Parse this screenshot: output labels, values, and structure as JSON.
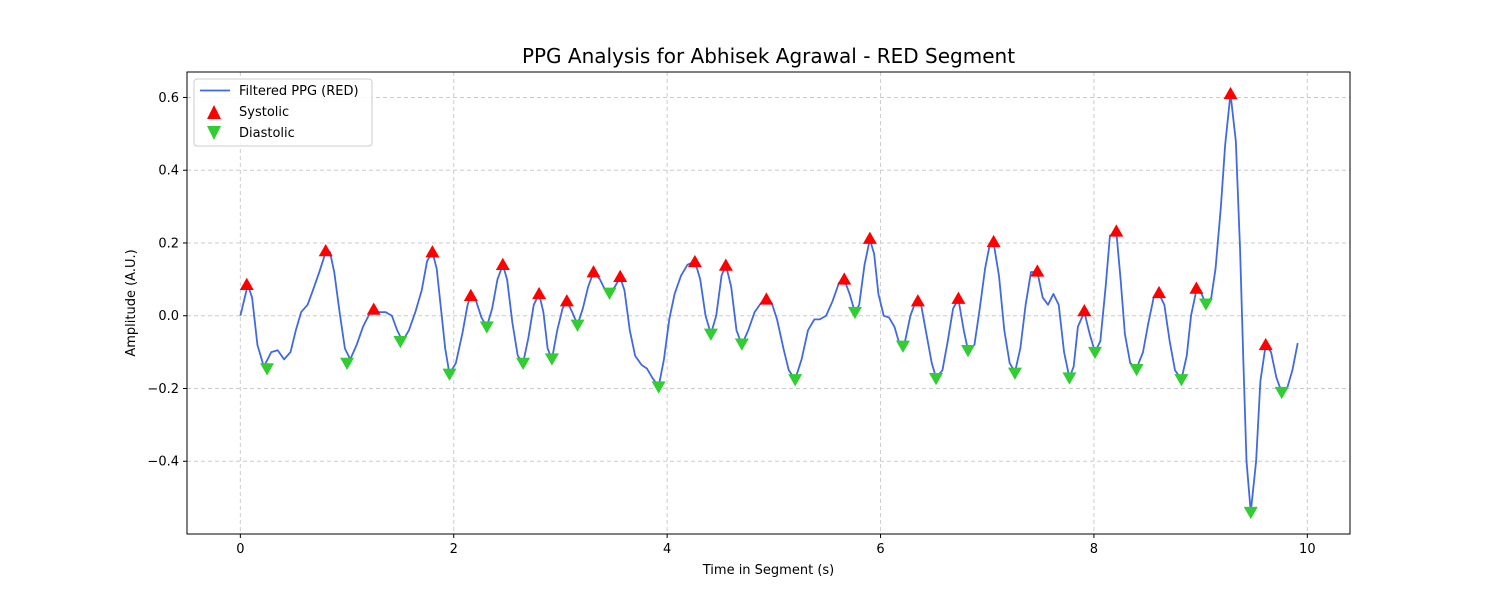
{
  "chart_data": {
    "type": "line",
    "title": "PPG Analysis for Abhisek Agrawal - RED Segment",
    "xlabel": "Time in Segment (s)",
    "ylabel": "Amplitude (A.U.)",
    "xlim": [
      -0.5,
      10.4
    ],
    "ylim": [
      -0.6,
      0.67
    ],
    "xticks": [
      0,
      2,
      4,
      6,
      8,
      10
    ],
    "yticks": [
      -0.4,
      -0.2,
      0.0,
      0.2,
      0.4,
      0.6
    ],
    "xtick_labels": [
      "0",
      "2",
      "4",
      "6",
      "8",
      "10"
    ],
    "ytick_labels": [
      "−0.4",
      "−0.2",
      "0.0",
      "0.2",
      "0.4",
      "0.6"
    ],
    "grid": true,
    "legend_position": "top-left",
    "colors": {
      "line": "#4169e1",
      "systolic": "#ff0000",
      "diastolic": "#32cd32"
    },
    "series": [
      {
        "name": "Filtered PPG (RED)",
        "kind": "line",
        "points": [
          [
            0.0,
            0.0
          ],
          [
            0.07,
            0.085
          ],
          [
            0.11,
            0.05
          ],
          [
            0.16,
            -0.08
          ],
          [
            0.22,
            -0.14
          ],
          [
            0.29,
            -0.1
          ],
          [
            0.35,
            -0.095
          ],
          [
            0.41,
            -0.12
          ],
          [
            0.47,
            -0.1
          ],
          [
            0.52,
            -0.04
          ],
          [
            0.57,
            0.01
          ],
          [
            0.63,
            0.03
          ],
          [
            0.68,
            0.07
          ],
          [
            0.74,
            0.12
          ],
          [
            0.8,
            0.175
          ],
          [
            0.84,
            0.175
          ],
          [
            0.88,
            0.12
          ],
          [
            0.93,
            0.01
          ],
          [
            0.98,
            -0.09
          ],
          [
            1.03,
            -0.12
          ],
          [
            1.09,
            -0.08
          ],
          [
            1.15,
            -0.03
          ],
          [
            1.21,
            0.005
          ],
          [
            1.25,
            0.015
          ],
          [
            1.3,
            0.01
          ],
          [
            1.36,
            0.01
          ],
          [
            1.42,
            0.0
          ],
          [
            1.47,
            -0.04
          ],
          [
            1.52,
            -0.07
          ],
          [
            1.58,
            -0.04
          ],
          [
            1.64,
            0.01
          ],
          [
            1.7,
            0.07
          ],
          [
            1.75,
            0.15
          ],
          [
            1.8,
            0.175
          ],
          [
            1.84,
            0.13
          ],
          [
            1.88,
            0.02
          ],
          [
            1.92,
            -0.09
          ],
          [
            1.96,
            -0.16
          ],
          [
            2.02,
            -0.13
          ],
          [
            2.08,
            -0.05
          ],
          [
            2.13,
            0.03
          ],
          [
            2.16,
            0.055
          ],
          [
            2.21,
            0.04
          ],
          [
            2.26,
            -0.005
          ],
          [
            2.31,
            -0.03
          ],
          [
            2.36,
            0.02
          ],
          [
            2.41,
            0.1
          ],
          [
            2.46,
            0.14
          ],
          [
            2.5,
            0.1
          ],
          [
            2.55,
            -0.02
          ],
          [
            2.6,
            -0.11
          ],
          [
            2.65,
            -0.13
          ],
          [
            2.7,
            -0.06
          ],
          [
            2.75,
            0.03
          ],
          [
            2.8,
            0.06
          ],
          [
            2.84,
            0.01
          ],
          [
            2.88,
            -0.09
          ],
          [
            2.92,
            -0.12
          ],
          [
            2.97,
            -0.04
          ],
          [
            3.02,
            0.02
          ],
          [
            3.06,
            0.04
          ],
          [
            3.11,
            0.01
          ],
          [
            3.16,
            -0.025
          ],
          [
            3.21,
            0.02
          ],
          [
            3.26,
            0.08
          ],
          [
            3.31,
            0.12
          ],
          [
            3.37,
            0.1
          ],
          [
            3.42,
            0.07
          ],
          [
            3.46,
            0.06
          ],
          [
            3.51,
            0.08
          ],
          [
            3.56,
            0.105
          ],
          [
            3.6,
            0.07
          ],
          [
            3.65,
            -0.04
          ],
          [
            3.7,
            -0.11
          ],
          [
            3.76,
            -0.135
          ],
          [
            3.81,
            -0.145
          ],
          [
            3.86,
            -0.17
          ],
          [
            3.92,
            -0.195
          ],
          [
            3.97,
            -0.12
          ],
          [
            4.02,
            -0.01
          ],
          [
            4.07,
            0.06
          ],
          [
            4.13,
            0.11
          ],
          [
            4.19,
            0.14
          ],
          [
            4.26,
            0.15
          ],
          [
            4.31,
            0.1
          ],
          [
            4.36,
            0.0
          ],
          [
            4.41,
            -0.05
          ],
          [
            4.46,
            0.0
          ],
          [
            4.51,
            0.11
          ],
          [
            4.55,
            0.14
          ],
          [
            4.6,
            0.08
          ],
          [
            4.65,
            -0.04
          ],
          [
            4.7,
            -0.08
          ],
          [
            4.76,
            -0.04
          ],
          [
            4.82,
            0.01
          ],
          [
            4.88,
            0.035
          ],
          [
            4.93,
            0.045
          ],
          [
            4.98,
            0.035
          ],
          [
            5.03,
            -0.01
          ],
          [
            5.09,
            -0.09
          ],
          [
            5.14,
            -0.15
          ],
          [
            5.2,
            -0.175
          ],
          [
            5.26,
            -0.12
          ],
          [
            5.32,
            -0.04
          ],
          [
            5.38,
            -0.01
          ],
          [
            5.43,
            -0.01
          ],
          [
            5.49,
            0.0
          ],
          [
            5.55,
            0.04
          ],
          [
            5.61,
            0.09
          ],
          [
            5.66,
            0.1
          ],
          [
            5.71,
            0.06
          ],
          [
            5.76,
            0.01
          ],
          [
            5.8,
            0.03
          ],
          [
            5.85,
            0.14
          ],
          [
            5.9,
            0.21
          ],
          [
            5.94,
            0.17
          ],
          [
            5.98,
            0.06
          ],
          [
            6.03,
            0.0
          ],
          [
            6.08,
            -0.005
          ],
          [
            6.13,
            -0.03
          ],
          [
            6.18,
            -0.08
          ],
          [
            6.23,
            -0.07
          ],
          [
            6.28,
            0.0
          ],
          [
            6.33,
            0.04
          ],
          [
            6.38,
            0.03
          ],
          [
            6.43,
            -0.05
          ],
          [
            6.48,
            -0.13
          ],
          [
            6.52,
            -0.17
          ],
          [
            6.58,
            -0.15
          ],
          [
            6.63,
            -0.07
          ],
          [
            6.68,
            0.02
          ],
          [
            6.73,
            0.045
          ],
          [
            6.78,
            -0.04
          ],
          [
            6.82,
            -0.095
          ],
          [
            6.88,
            -0.08
          ],
          [
            6.93,
            0.02
          ],
          [
            6.98,
            0.13
          ],
          [
            7.02,
            0.19
          ],
          [
            7.06,
            0.2
          ],
          [
            7.11,
            0.11
          ],
          [
            7.16,
            -0.04
          ],
          [
            7.21,
            -0.13
          ],
          [
            7.26,
            -0.155
          ],
          [
            7.31,
            -0.09
          ],
          [
            7.36,
            0.03
          ],
          [
            7.41,
            0.12
          ],
          [
            7.47,
            0.12
          ],
          [
            7.52,
            0.05
          ],
          [
            7.57,
            0.03
          ],
          [
            7.62,
            0.06
          ],
          [
            7.67,
            0.03
          ],
          [
            7.72,
            -0.1
          ],
          [
            7.77,
            -0.17
          ],
          [
            7.81,
            -0.14
          ],
          [
            7.85,
            -0.03
          ],
          [
            7.91,
            0.01
          ],
          [
            7.96,
            -0.05
          ],
          [
            8.01,
            -0.1
          ],
          [
            8.06,
            -0.07
          ],
          [
            8.11,
            0.08
          ],
          [
            8.15,
            0.22
          ],
          [
            8.21,
            0.23
          ],
          [
            8.25,
            0.1
          ],
          [
            8.29,
            -0.05
          ],
          [
            8.34,
            -0.13
          ],
          [
            8.4,
            -0.145
          ],
          [
            8.46,
            -0.1
          ],
          [
            8.51,
            -0.02
          ],
          [
            8.56,
            0.05
          ],
          [
            8.61,
            0.06
          ],
          [
            8.66,
            0.03
          ],
          [
            8.71,
            -0.07
          ],
          [
            8.76,
            -0.15
          ],
          [
            8.82,
            -0.175
          ],
          [
            8.87,
            -0.11
          ],
          [
            8.91,
            0.0
          ],
          [
            8.96,
            0.07
          ],
          [
            9.01,
            0.06
          ],
          [
            9.05,
            0.03
          ],
          [
            9.1,
            0.05
          ],
          [
            9.14,
            0.13
          ],
          [
            9.19,
            0.3
          ],
          [
            9.23,
            0.47
          ],
          [
            9.28,
            0.61
          ],
          [
            9.33,
            0.48
          ],
          [
            9.37,
            0.18
          ],
          [
            9.4,
            -0.12
          ],
          [
            9.43,
            -0.4
          ],
          [
            9.47,
            -0.54
          ],
          [
            9.52,
            -0.4
          ],
          [
            9.56,
            -0.18
          ],
          [
            9.61,
            -0.08
          ],
          [
            9.66,
            -0.1
          ],
          [
            9.71,
            -0.17
          ],
          [
            9.76,
            -0.21
          ],
          [
            9.81,
            -0.2
          ],
          [
            9.86,
            -0.15
          ],
          [
            9.91,
            -0.075
          ]
        ]
      },
      {
        "name": "Systolic",
        "kind": "markers",
        "marker": "triangle-up",
        "points": [
          [
            0.06,
            0.085
          ],
          [
            0.8,
            0.178
          ],
          [
            1.25,
            0.017
          ],
          [
            1.8,
            0.175
          ],
          [
            2.16,
            0.055
          ],
          [
            2.46,
            0.14
          ],
          [
            2.8,
            0.06
          ],
          [
            3.06,
            0.04
          ],
          [
            3.31,
            0.12
          ],
          [
            3.56,
            0.107
          ],
          [
            4.26,
            0.148
          ],
          [
            4.55,
            0.138
          ],
          [
            4.93,
            0.045
          ],
          [
            5.66,
            0.1
          ],
          [
            5.9,
            0.212
          ],
          [
            6.35,
            0.04
          ],
          [
            6.73,
            0.047
          ],
          [
            7.06,
            0.203
          ],
          [
            7.47,
            0.122
          ],
          [
            7.91,
            0.013
          ],
          [
            8.21,
            0.232
          ],
          [
            8.61,
            0.063
          ],
          [
            8.96,
            0.075
          ],
          [
            9.28,
            0.61
          ],
          [
            9.61,
            -0.08
          ]
        ]
      },
      {
        "name": "Diastolic",
        "kind": "markers",
        "marker": "triangle-down",
        "points": [
          [
            0.25,
            -0.145
          ],
          [
            1.0,
            -0.13
          ],
          [
            1.5,
            -0.07
          ],
          [
            1.96,
            -0.16
          ],
          [
            2.31,
            -0.03
          ],
          [
            2.65,
            -0.13
          ],
          [
            2.92,
            -0.118
          ],
          [
            3.16,
            -0.025
          ],
          [
            3.46,
            0.063
          ],
          [
            3.92,
            -0.195
          ],
          [
            4.41,
            -0.05
          ],
          [
            4.7,
            -0.077
          ],
          [
            5.2,
            -0.175
          ],
          [
            5.76,
            0.01
          ],
          [
            6.21,
            -0.083
          ],
          [
            6.52,
            -0.172
          ],
          [
            6.82,
            -0.095
          ],
          [
            7.26,
            -0.157
          ],
          [
            7.77,
            -0.17
          ],
          [
            8.01,
            -0.1
          ],
          [
            8.4,
            -0.147
          ],
          [
            8.82,
            -0.175
          ],
          [
            9.05,
            0.033
          ],
          [
            9.47,
            -0.54
          ],
          [
            9.76,
            -0.21
          ]
        ]
      }
    ]
  }
}
